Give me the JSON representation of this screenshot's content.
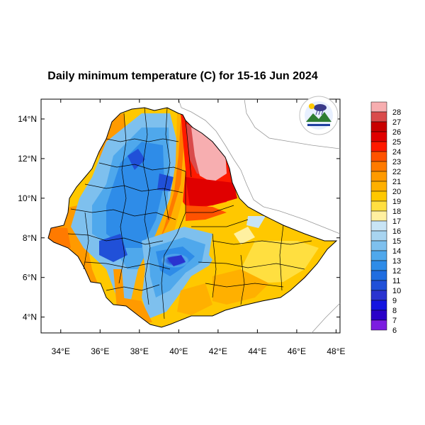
{
  "title": "Daily minimum temperature (C) for 15-16 Jun 2024",
  "map": {
    "lon_range": [
      33,
      48.2
    ],
    "lat_range": [
      3.2,
      15
    ],
    "x_ticks": [
      "34°E",
      "36°E",
      "38°E",
      "40°E",
      "42°E",
      "44°E",
      "46°E",
      "48°E"
    ],
    "x_tick_values": [
      34,
      36,
      38,
      40,
      42,
      44,
      46,
      48
    ],
    "y_ticks": [
      "14°N",
      "12°N",
      "10°N",
      "8°N",
      "6°N",
      "4°N"
    ],
    "y_tick_values": [
      14,
      12,
      10,
      8,
      6,
      4
    ]
  },
  "colorbar": {
    "labels": [
      "28",
      "27",
      "26",
      "25",
      "24",
      "23",
      "22",
      "21",
      "20",
      "19",
      "18",
      "17",
      "16",
      "15",
      "14",
      "13",
      "12",
      "11",
      "10",
      "9",
      "8",
      "7",
      "6"
    ],
    "colors": [
      "#f7aeb0",
      "#d94b4b",
      "#c80000",
      "#e00000",
      "#ff1a00",
      "#ff5200",
      "#ff7a00",
      "#ff9a00",
      "#ffb000",
      "#ffc800",
      "#ffdf40",
      "#fff0a0",
      "#c8e4f5",
      "#a8d4f0",
      "#7ec0ee",
      "#4fa8ec",
      "#2e8ce8",
      "#1f6de0",
      "#2050d8",
      "#2a33d0",
      "#1414e0",
      "#2a00c8",
      "#7c1de0"
    ]
  },
  "logo": {
    "name": "ethiopia-meteorology-institute-logo"
  }
}
